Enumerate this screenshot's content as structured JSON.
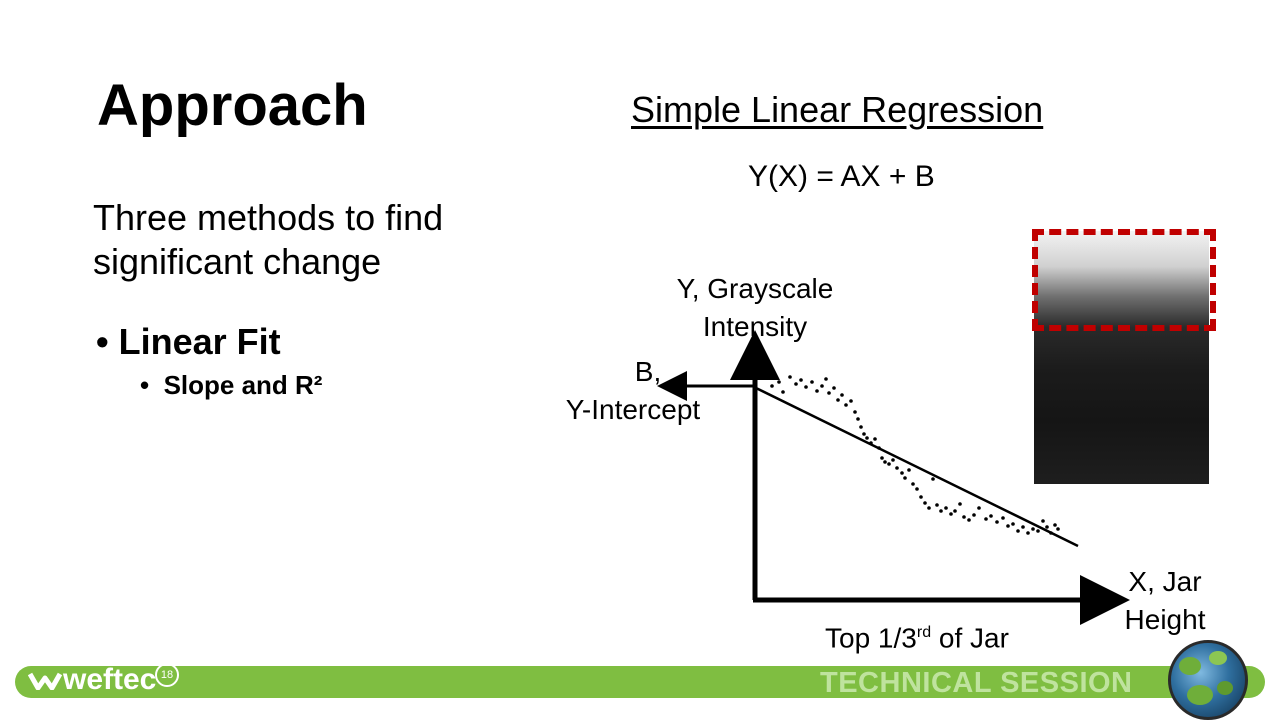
{
  "slide": {
    "title": "Approach",
    "subtitle": "Simple Linear Regression",
    "equation": "Y(X) = AX + B",
    "body_text": "Three methods to find significant change",
    "bullets": [
      {
        "label": "Linear Fit",
        "sub": [
          "Slope and R²"
        ]
      }
    ]
  },
  "diagram": {
    "y_axis_label_line1": "Y, Grayscale",
    "y_axis_label_line2": "Intensity",
    "intercept_label_line1": "B,",
    "intercept_label_line2": "Y-Intercept",
    "x_axis_label_line1": "X, Jar",
    "x_axis_label_line2": "Height",
    "x_caption_main": "Top 1/3",
    "x_caption_sup": "rd",
    "x_caption_tail": " of Jar"
  },
  "footer": {
    "brand": "weftec",
    "brand_badge": "18",
    "session": "TECHNICAL SESSION",
    "bar_color": "#7fbe41",
    "accent_box_color": "#c00000"
  }
}
